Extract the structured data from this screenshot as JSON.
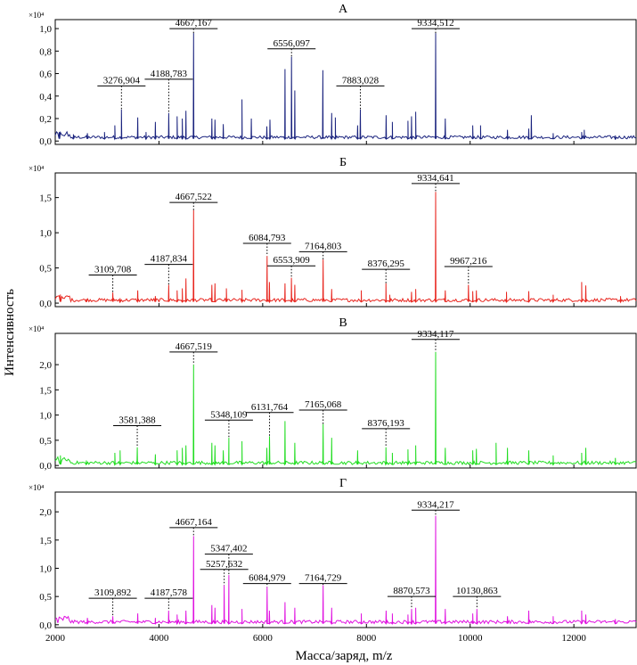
{
  "chart_data": {
    "type": "line",
    "xlabel": "Масса/заряд, m/z",
    "ylabel": "Интенсивность",
    "xlim": [
      2000,
      13200
    ],
    "x_ticks": [
      2000,
      4000,
      6000,
      8000,
      10000,
      12000
    ],
    "x_tick_labels": [
      "2000",
      "4000",
      "6000",
      "8000",
      "10000",
      "12000"
    ],
    "panels": [
      {
        "title": "А",
        "color": "#1a237e",
        "multiplier": "×10⁴",
        "ylim": [
          -0.03,
          1.08
        ],
        "y_ticks": [
          0.0,
          0.2,
          0.4,
          0.6,
          0.8,
          1.0
        ],
        "y_tick_labels": [
          "0,0",
          "0,2",
          "0,4",
          "0,6",
          "0,8",
          "1,0"
        ],
        "baseline": 0.02,
        "labeled_peaks": [
          {
            "x": 3276.904,
            "label": "3276,904",
            "y": 0.28,
            "label_y": 0.49
          },
          {
            "x": 4188.783,
            "label": "4188,783",
            "y": 0.25,
            "label_y": 0.55
          },
          {
            "x": 4667.167,
            "label": "4667,167",
            "y": 0.96,
            "label_y": 1.0
          },
          {
            "x": 6556.097,
            "label": "6556,097",
            "y": 0.75,
            "label_y": 0.82
          },
          {
            "x": 7883.028,
            "label": "7883,028",
            "y": 0.28,
            "label_y": 0.49
          },
          {
            "x": 9334.512,
            "label": "9334,512",
            "y": 0.96,
            "label_y": 1.0
          }
        ],
        "other_peaks": [
          [
            2080,
            0.08
          ],
          [
            2350,
            0.06
          ],
          [
            2620,
            0.07
          ],
          [
            2950,
            0.08
          ],
          [
            3150,
            0.14
          ],
          [
            3590,
            0.21
          ],
          [
            3750,
            0.08
          ],
          [
            3930,
            0.17
          ],
          [
            4350,
            0.22
          ],
          [
            4450,
            0.2
          ],
          [
            4520,
            0.27
          ],
          [
            5020,
            0.2
          ],
          [
            5080,
            0.19
          ],
          [
            5240,
            0.15
          ],
          [
            5600,
            0.37
          ],
          [
            5780,
            0.2
          ],
          [
            6080,
            0.13
          ],
          [
            6140,
            0.19
          ],
          [
            6430,
            0.64
          ],
          [
            6620,
            0.45
          ],
          [
            7160,
            0.63
          ],
          [
            7330,
            0.25
          ],
          [
            7400,
            0.21
          ],
          [
            7830,
            0.14
          ],
          [
            8380,
            0.23
          ],
          [
            8500,
            0.17
          ],
          [
            8800,
            0.18
          ],
          [
            8870,
            0.22
          ],
          [
            8950,
            0.26
          ],
          [
            9520,
            0.2
          ],
          [
            10050,
            0.14
          ],
          [
            10200,
            0.14
          ],
          [
            10720,
            0.1
          ],
          [
            11130,
            0.11
          ],
          [
            11180,
            0.23
          ],
          [
            11600,
            0.07
          ],
          [
            12150,
            0.08
          ],
          [
            12200,
            0.1
          ],
          [
            12800,
            0.05
          ]
        ]
      },
      {
        "title": "Б",
        "color": "#e8261f",
        "multiplier": "×10⁴",
        "ylim": [
          -0.05,
          1.85
        ],
        "y_ticks": [
          0.0,
          0.5,
          1.0,
          1.5
        ],
        "y_tick_labels": [
          "0,0",
          "0,5",
          "1,0",
          "1,5"
        ],
        "baseline": 0.02,
        "labeled_peaks": [
          {
            "x": 3109.708,
            "label": "3109,708",
            "y": 0.15,
            "label_y": 0.4
          },
          {
            "x": 4187.834,
            "label": "4187,834",
            "y": 0.26,
            "label_y": 0.55
          },
          {
            "x": 4667.522,
            "label": "4667,522",
            "y": 1.32,
            "label_y": 1.43
          },
          {
            "x": 6084.793,
            "label": "6084,793",
            "y": 0.67,
            "label_y": 0.85
          },
          {
            "x": 6553.909,
            "label": "6553,909",
            "y": 0.36,
            "label_y": 0.53
          },
          {
            "x": 7164.803,
            "label": "7164,803",
            "y": 0.62,
            "label_y": 0.73
          },
          {
            "x": 8376.295,
            "label": "8376,295",
            "y": 0.28,
            "label_y": 0.48
          },
          {
            "x": 9334.641,
            "label": "9334,641",
            "y": 1.58,
            "label_y": 1.7
          },
          {
            "x": 9967.216,
            "label": "9967,216",
            "y": 0.26,
            "label_y": 0.52
          }
        ],
        "other_peaks": [
          [
            2100,
            0.05
          ],
          [
            2600,
            0.06
          ],
          [
            3250,
            0.07
          ],
          [
            3590,
            0.18
          ],
          [
            3930,
            0.1
          ],
          [
            4350,
            0.18
          ],
          [
            4450,
            0.21
          ],
          [
            4520,
            0.35
          ],
          [
            5020,
            0.26
          ],
          [
            5080,
            0.28
          ],
          [
            5300,
            0.21
          ],
          [
            5600,
            0.19
          ],
          [
            6130,
            0.3
          ],
          [
            6430,
            0.28
          ],
          [
            6620,
            0.26
          ],
          [
            7330,
            0.2
          ],
          [
            7900,
            0.18
          ],
          [
            8450,
            0.12
          ],
          [
            8870,
            0.16
          ],
          [
            8950,
            0.2
          ],
          [
            9520,
            0.18
          ],
          [
            10050,
            0.17
          ],
          [
            10120,
            0.18
          ],
          [
            10700,
            0.16
          ],
          [
            11130,
            0.17
          ],
          [
            11600,
            0.12
          ],
          [
            12150,
            0.3
          ],
          [
            12230,
            0.25
          ],
          [
            12900,
            0.1
          ]
        ]
      },
      {
        "title": "В",
        "color": "#22dd22",
        "multiplier": "×10⁴",
        "ylim": [
          -0.05,
          2.62
        ],
        "y_ticks": [
          0.0,
          0.5,
          1.0,
          1.5,
          2.0
        ],
        "y_tick_labels": [
          "0,0",
          "0,5",
          "1,0",
          "1,5",
          "2,0"
        ],
        "baseline": 0.02,
        "labeled_peaks": [
          {
            "x": 3581.388,
            "label": "3581,388",
            "y": 0.36,
            "label_y": 0.79
          },
          {
            "x": 4667.519,
            "label": "4667,519",
            "y": 2.0,
            "label_y": 2.25
          },
          {
            "x": 5348.109,
            "label": "5348,109",
            "y": 0.55,
            "label_y": 0.9
          },
          {
            "x": 6131.764,
            "label": "6131,764",
            "y": 0.58,
            "label_y": 1.05
          },
          {
            "x": 7165.068,
            "label": "7165,068",
            "y": 0.82,
            "label_y": 1.1
          },
          {
            "x": 8376.193,
            "label": "8376,193",
            "y": 0.36,
            "label_y": 0.73
          },
          {
            "x": 9334.117,
            "label": "9334,117",
            "y": 2.25,
            "label_y": 2.5
          }
        ],
        "other_peaks": [
          [
            2100,
            0.2
          ],
          [
            2600,
            0.1
          ],
          [
            3150,
            0.25
          ],
          [
            3250,
            0.3
          ],
          [
            3930,
            0.22
          ],
          [
            4350,
            0.3
          ],
          [
            4450,
            0.35
          ],
          [
            4520,
            0.4
          ],
          [
            5020,
            0.45
          ],
          [
            5080,
            0.4
          ],
          [
            5240,
            0.3
          ],
          [
            5600,
            0.48
          ],
          [
            6080,
            0.35
          ],
          [
            6430,
            0.88
          ],
          [
            6620,
            0.45
          ],
          [
            7330,
            0.55
          ],
          [
            7830,
            0.3
          ],
          [
            8500,
            0.25
          ],
          [
            8800,
            0.32
          ],
          [
            8950,
            0.4
          ],
          [
            9520,
            0.35
          ],
          [
            10050,
            0.3
          ],
          [
            10120,
            0.33
          ],
          [
            10500,
            0.45
          ],
          [
            10720,
            0.35
          ],
          [
            11130,
            0.3
          ],
          [
            11600,
            0.2
          ],
          [
            12150,
            0.25
          ],
          [
            12230,
            0.35
          ],
          [
            12800,
            0.15
          ]
        ]
      },
      {
        "title": "Г",
        "color": "#e012e0",
        "multiplier": "×10⁴",
        "ylim": [
          -0.05,
          2.35
        ],
        "y_ticks": [
          0.0,
          0.5,
          1.0,
          1.5,
          2.0
        ],
        "y_tick_labels": [
          "0,0",
          "0,5",
          "1,0",
          "1,5",
          "2,0"
        ],
        "baseline": 0.02,
        "labeled_peaks": [
          {
            "x": 3109.892,
            "label": "3109,892",
            "y": 0.15,
            "label_y": 0.47
          },
          {
            "x": 4187.578,
            "label": "4187,578",
            "y": 0.25,
            "label_y": 0.47
          },
          {
            "x": 4667.164,
            "label": "4667,164",
            "y": 1.57,
            "label_y": 1.72
          },
          {
            "x": 5257.632,
            "label": "5257,632",
            "y": 0.7,
            "label_y": 0.98
          },
          {
            "x": 5347.402,
            "label": "5347,402",
            "y": 0.88,
            "label_y": 1.25
          },
          {
            "x": 6084.979,
            "label": "6084,979",
            "y": 0.67,
            "label_y": 0.73
          },
          {
            "x": 7164.729,
            "label": "7164,729",
            "y": 0.7,
            "label_y": 0.73
          },
          {
            "x": 8870.573,
            "label": "8870,573",
            "y": 0.28,
            "label_y": 0.5
          },
          {
            "x": 9334.217,
            "label": "9334,217",
            "y": 1.93,
            "label_y": 2.03
          },
          {
            "x": 10130.863,
            "label": "10130,863",
            "y": 0.28,
            "label_y": 0.5
          }
        ],
        "other_peaks": [
          [
            2620,
            0.12
          ],
          [
            3590,
            0.2
          ],
          [
            3930,
            0.12
          ],
          [
            4350,
            0.18
          ],
          [
            4520,
            0.25
          ],
          [
            5020,
            0.35
          ],
          [
            5080,
            0.3
          ],
          [
            5600,
            0.28
          ],
          [
            6130,
            0.25
          ],
          [
            6430,
            0.4
          ],
          [
            6620,
            0.3
          ],
          [
            7330,
            0.3
          ],
          [
            7900,
            0.2
          ],
          [
            8380,
            0.25
          ],
          [
            8500,
            0.2
          ],
          [
            8800,
            0.18
          ],
          [
            8950,
            0.3
          ],
          [
            9520,
            0.28
          ],
          [
            10050,
            0.2
          ],
          [
            10720,
            0.15
          ],
          [
            11130,
            0.25
          ],
          [
            11600,
            0.15
          ],
          [
            12150,
            0.25
          ],
          [
            12230,
            0.18
          ],
          [
            12800,
            0.1
          ]
        ]
      }
    ]
  }
}
